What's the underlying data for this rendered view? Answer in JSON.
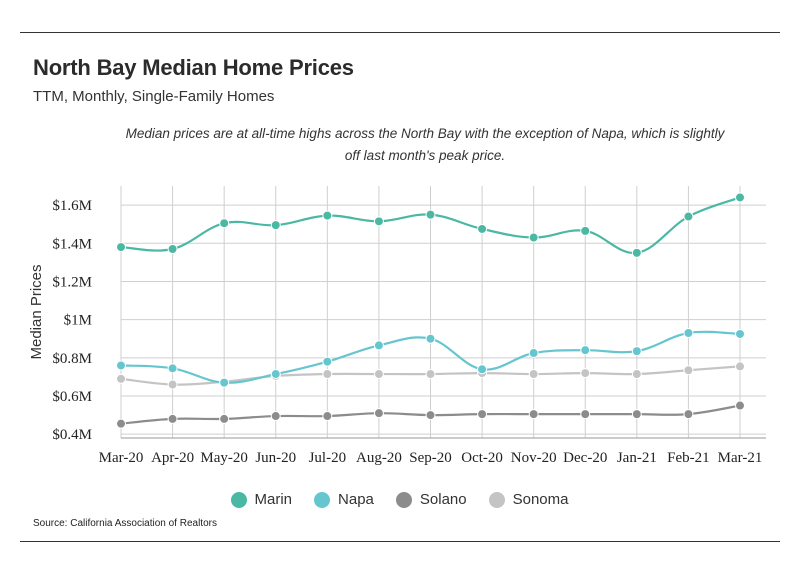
{
  "header": {
    "title": "North Bay Median Home Prices",
    "subtitle": "TTM, Monthly, Single-Family Homes",
    "note": "Median prices are at all-time highs across the North Bay with the exception of Napa, which is slightly off last month's peak price."
  },
  "source": "Source:  California Association of Realtors",
  "chart_data": {
    "type": "line",
    "title": "North Bay Median Home Prices",
    "subtitle": "TTM, Monthly, Single-Family Homes",
    "ylabel": "Median Prices",
    "xlabel": "",
    "categories": [
      "Mar-20",
      "Apr-20",
      "May-20",
      "Jun-20",
      "Jul-20",
      "Aug-20",
      "Sep-20",
      "Oct-20",
      "Nov-20",
      "Dec-20",
      "Jan-21",
      "Feb-21",
      "Mar-21"
    ],
    "ylim": [
      380000,
      1700000
    ],
    "yticks": [
      {
        "value": 400000,
        "label": "$0.4M"
      },
      {
        "value": 600000,
        "label": "$0.6M"
      },
      {
        "value": 800000,
        "label": "$0.8M"
      },
      {
        "value": 1000000,
        "label": "$1M"
      },
      {
        "value": 1200000,
        "label": "$1.2M"
      },
      {
        "value": 1400000,
        "label": "$1.4M"
      },
      {
        "value": 1600000,
        "label": "$1.6M"
      }
    ],
    "grid": true,
    "legend": "bottom",
    "series": [
      {
        "name": "Marin",
        "color": "#4bb8a4",
        "values": [
          1380000,
          1370000,
          1505000,
          1495000,
          1545000,
          1515000,
          1550000,
          1475000,
          1430000,
          1465000,
          1350000,
          1540000,
          1640000
        ]
      },
      {
        "name": "Napa",
        "color": "#66c6cf",
        "values": [
          760000,
          745000,
          670000,
          715000,
          780000,
          865000,
          900000,
          740000,
          825000,
          840000,
          835000,
          930000,
          925000
        ]
      },
      {
        "name": "Solano",
        "color": "#8c8c8c",
        "values": [
          455000,
          480000,
          480000,
          495000,
          495000,
          510000,
          500000,
          505000,
          505000,
          505000,
          505000,
          505000,
          550000
        ]
      },
      {
        "name": "Sonoma",
        "color": "#c4c4c4",
        "values": [
          690000,
          660000,
          675000,
          705000,
          715000,
          715000,
          715000,
          720000,
          715000,
          720000,
          715000,
          735000,
          755000
        ]
      }
    ]
  }
}
